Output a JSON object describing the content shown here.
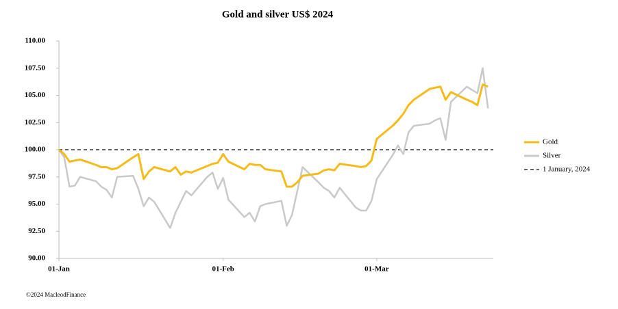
{
  "chart_data": {
    "type": "line",
    "title": "Gold and silver  US$ 2024",
    "x": [
      0,
      1,
      2,
      3,
      4,
      7,
      8,
      9,
      10,
      11,
      14,
      15,
      16,
      17,
      18,
      21,
      22,
      23,
      24,
      25,
      28,
      29,
      30,
      31,
      32,
      35,
      36,
      37,
      38,
      39,
      42,
      43,
      44,
      45,
      46,
      49,
      50,
      51,
      52,
      53,
      56,
      57,
      58,
      59,
      60,
      63,
      64,
      65,
      66,
      67,
      70,
      71,
      72,
      73,
      74,
      77,
      78,
      79,
      80,
      81
    ],
    "series": [
      {
        "name": "Gold",
        "color": "#f5bb1a",
        "values": [
          100.0,
          99.6,
          98.9,
          99.0,
          99.1,
          98.6,
          98.4,
          98.4,
          98.2,
          98.3,
          99.3,
          99.6,
          97.3,
          98.0,
          98.4,
          98.0,
          98.4,
          97.7,
          98.0,
          97.9,
          98.5,
          98.7,
          98.8,
          99.6,
          98.9,
          98.2,
          98.7,
          98.6,
          98.6,
          98.2,
          98.0,
          96.6,
          96.6,
          97.0,
          97.6,
          97.8,
          98.1,
          98.2,
          98.1,
          98.7,
          98.5,
          98.4,
          98.5,
          99.0,
          101.0,
          102.2,
          102.7,
          103.3,
          104.1,
          104.6,
          105.6,
          105.7,
          105.8,
          104.6,
          105.3,
          104.6,
          104.4,
          104.1,
          106.0,
          105.8
        ]
      },
      {
        "name": "Silver",
        "color": "#c9c9c9",
        "values": [
          100.0,
          99.3,
          96.6,
          96.7,
          97.5,
          97.1,
          96.6,
          96.3,
          95.6,
          97.5,
          97.6,
          96.4,
          94.8,
          95.6,
          95.2,
          92.8,
          94.2,
          95.2,
          96.2,
          95.8,
          97.5,
          97.9,
          96.4,
          97.4,
          95.4,
          93.8,
          94.2,
          93.4,
          94.8,
          95.0,
          95.3,
          93.0,
          94.0,
          96.2,
          98.4,
          97.0,
          96.5,
          96.2,
          95.6,
          96.5,
          94.7,
          94.4,
          94.4,
          95.3,
          97.3,
          99.5,
          100.4,
          99.6,
          101.6,
          102.2,
          102.4,
          102.7,
          102.9,
          100.9,
          104.4,
          105.8,
          105.5,
          105.2,
          107.5,
          103.8
        ]
      }
    ],
    "reference": {
      "name": "1 January, 2024",
      "value": 100,
      "color": "#333333"
    },
    "xlim": [
      0,
      82
    ],
    "xticks": [
      {
        "value": 0,
        "label": "01-Jan"
      },
      {
        "value": 31,
        "label": "01-Feb"
      },
      {
        "value": 60,
        "label": "01-Mar"
      }
    ],
    "ylim": [
      90,
      110
    ],
    "yticks": [
      {
        "value": 90,
        "label": "90.00"
      },
      {
        "value": 92.5,
        "label": "92.50"
      },
      {
        "value": 95,
        "label": "95.00"
      },
      {
        "value": 97.5,
        "label": "97.50"
      },
      {
        "value": 100,
        "label": "100.00"
      },
      {
        "value": 102.5,
        "label": "102.50"
      },
      {
        "value": 105,
        "label": "105.00"
      },
      {
        "value": 107.5,
        "label": "107.50"
      },
      {
        "value": 110,
        "label": "110.00"
      }
    ],
    "source": "©2024 MacleodFinance"
  }
}
